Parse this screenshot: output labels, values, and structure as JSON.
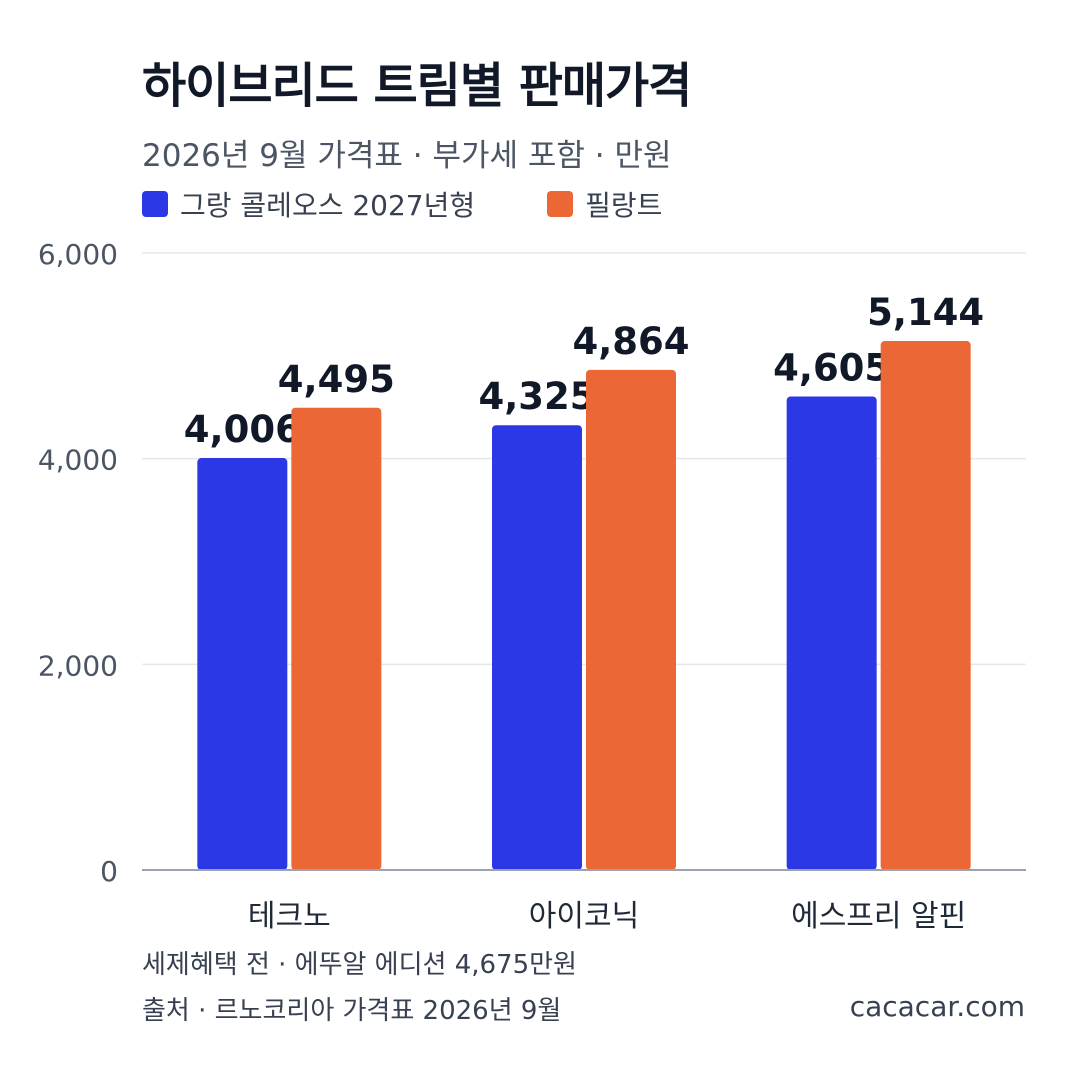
{
  "title": "하이브리드 트림별 판매가격",
  "subtitle": "2026년 9월 가격표 · 부가세 포함 · 만원",
  "footnote": "세제혜택 전 · 에뚜알 에디션 4,675만원",
  "source": "출처 · 르노코리아 가격표 2026년 9월",
  "site": "cacacar.com",
  "colors": {
    "series1": "#2c37e6",
    "series2": "#eb6836",
    "grid": "#e5e7eb",
    "axis": "#9ca3af"
  },
  "chart_data": {
    "type": "bar",
    "categories": [
      "테크노",
      "아이코닉",
      "에스프리 알핀"
    ],
    "series": [
      {
        "name": "그랑 콜레오스 2027년형",
        "values": [
          4006,
          4325,
          4605
        ]
      },
      {
        "name": "필랑트",
        "values": [
          4495,
          4864,
          5144
        ]
      }
    ],
    "data_labels": [
      [
        "4,006",
        "4,325",
        "4,605"
      ],
      [
        "4,495",
        "4,864",
        "5,144"
      ]
    ],
    "ylim": [
      0,
      6000
    ],
    "yticks": [
      0,
      2000,
      4000,
      6000
    ],
    "ytick_labels": [
      "0",
      "2,000",
      "4,000",
      "6,000"
    ],
    "grid": true,
    "legend": "top-left"
  }
}
